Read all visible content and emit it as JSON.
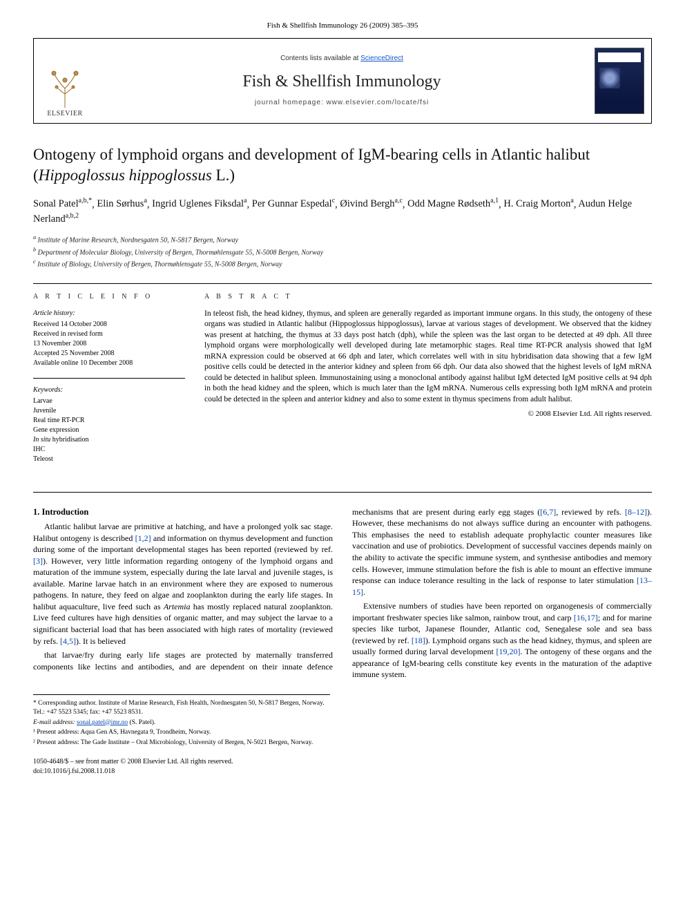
{
  "journal_ref": "Fish & Shellfish Immunology 26 (2009) 385–395",
  "header": {
    "contents_prefix": "Contents lists available at ",
    "contents_link": "ScienceDirect",
    "journal_name": "Fish & Shellfish Immunology",
    "homepage_prefix": "journal homepage: ",
    "homepage_url": "www.elsevier.com/locate/fsi",
    "publisher_logo_label": "ELSEVIER"
  },
  "title_html": "Ontogeny of lymphoid organs and development of IgM-bearing cells in Atlantic halibut (<em>Hippoglossus hippoglossus</em> L.)",
  "authors": [
    {
      "name": "Sonal Patel",
      "marks": "a,b,*"
    },
    {
      "name": "Elin Sørhus",
      "marks": "a"
    },
    {
      "name": "Ingrid Uglenes Fiksdal",
      "marks": "a"
    },
    {
      "name": "Per Gunnar Espedal",
      "marks": "c"
    },
    {
      "name": "Øivind Bergh",
      "marks": "a,c"
    },
    {
      "name": "Odd Magne Rødseth",
      "marks": "a,1"
    },
    {
      "name": "H. Craig Morton",
      "marks": "a"
    },
    {
      "name": "Audun Helge Nerland",
      "marks": "a,b,2"
    }
  ],
  "affiliations": [
    {
      "mark": "a",
      "text": "Institute of Marine Research, Nordnesgaten 50, N-5817 Bergen, Norway"
    },
    {
      "mark": "b",
      "text": "Department of Molecular Biology, University of Bergen, Thormøhlensgate 55, N-5008 Bergen, Norway"
    },
    {
      "mark": "c",
      "text": "Institute of Biology, University of Bergen, Thormøhlensgate 55, N-5008 Bergen, Norway"
    }
  ],
  "article_info": {
    "heading": "A R T I C L E   I N F O",
    "history_label": "Article history:",
    "history": [
      "Received 14 October 2008",
      "Received in revised form",
      "13 November 2008",
      "Accepted 25 November 2008",
      "Available online 10 December 2008"
    ],
    "keywords_label": "Keywords:",
    "keywords": [
      "Larvae",
      "Juvenile",
      "Real time RT-PCR",
      "Gene expression",
      "In situ hybridisation",
      "IHC",
      "Teleost"
    ]
  },
  "abstract": {
    "heading": "A B S T R A C T",
    "text": "In teleost fish, the head kidney, thymus, and spleen are generally regarded as important immune organs. In this study, the ontogeny of these organs was studied in Atlantic halibut (Hippoglossus hippoglossus), larvae at various stages of development. We observed that the kidney was present at hatching, the thymus at 33 days post hatch (dph), while the spleen was the last organ to be detected at 49 dph. All three lymphoid organs were morphologically well developed during late metamorphic stages. Real time RT-PCR analysis showed that IgM mRNA expression could be observed at 66 dph and later, which correlates well with in situ hybridisation data showing that a few IgM positive cells could be detected in the anterior kidney and spleen from 66 dph. Our data also showed that the highest levels of IgM mRNA could be detected in halibut spleen. Immunostaining using a monoclonal antibody against halibut IgM detected IgM positive cells at 94 dph in both the head kidney and the spleen, which is much later than the IgM mRNA. Numerous cells expressing both IgM mRNA and protein could be detected in the spleen and anterior kidney and also to some extent in thymus specimens from adult halibut.",
    "copyright": "© 2008 Elsevier Ltd. All rights reserved."
  },
  "body": {
    "section_number": "1.",
    "section_title": "Introduction",
    "p1": "Atlantic halibut larvae are primitive at hatching, and have a prolonged yolk sac stage. Halibut ontogeny is described [1,2] and information on thymus development and function during some of the important developmental stages has been reported (reviewed by ref. [3]). However, very little information regarding ontogeny of the lymphoid organs and maturation of the immune system, especially during the late larval and juvenile stages, is available. Marine larvae hatch in an environment where they are exposed to numerous pathogens. In nature, they feed on algae and zooplankton during the early life stages. In halibut aquaculture, live feed such as Artemia has mostly replaced natural zooplankton. Live feed cultures have high densities of organic matter, and may subject the larvae to a significant bacterial load that has been associated with high rates of mortality (reviewed by refs. [4,5]). It is believed",
    "p2": "that larvae/fry during early life stages are protected by maternally transferred components like lectins and antibodies, and are dependent on their innate defence mechanisms that are present during early egg stages ([6,7], reviewed by refs. [8–12]). However, these mechanisms do not always suffice during an encounter with pathogens. This emphasises the need to establish adequate prophylactic counter measures like vaccination and use of probiotics. Development of successful vaccines depends mainly on the ability to activate the specific immune system, and synthesise antibodies and memory cells. However, immune stimulation before the fish is able to mount an effective immune response can induce tolerance resulting in the lack of response to later stimulation [13–15].",
    "p3": "Extensive numbers of studies have been reported on organogenesis of commercially important freshwater species like salmon, rainbow trout, and carp [16,17]; and for marine species like turbot, Japanese flounder, Atlantic cod, Senegalese sole and sea bass (reviewed by ref. [18]). Lymphoid organs such as the head kidney, thymus, and spleen are usually formed during larval development [19,20]. The ontogeny of these organs and the appearance of IgM-bearing cells constitute key events in the maturation of the adaptive immune system."
  },
  "footnotes": {
    "corresponding": "* Corresponding author. Institute of Marine Research, Fish Health, Nordnesgaten 50, N-5817 Bergen, Norway. Tel.: +47 5523 5345; fax: +47 5523 8531.",
    "email_label": "E-mail address:",
    "email": "sonal.patel@imr.no",
    "email_whom": "(S. Patel).",
    "note1": "¹ Present address: Aqua Gen AS, Havnegata 9, Trondheim, Norway.",
    "note2": "² Present address: The Gade Institute – Oral Microbiology, University of Bergen, N-5021 Bergen, Norway."
  },
  "bottom": {
    "line1": "1050-4648/$ – see front matter © 2008 Elsevier Ltd. All rights reserved.",
    "line2": "doi:10.1016/j.fsi.2008.11.018"
  },
  "colors": {
    "link": "#0645ad",
    "text": "#000000",
    "background": "#ffffff"
  }
}
